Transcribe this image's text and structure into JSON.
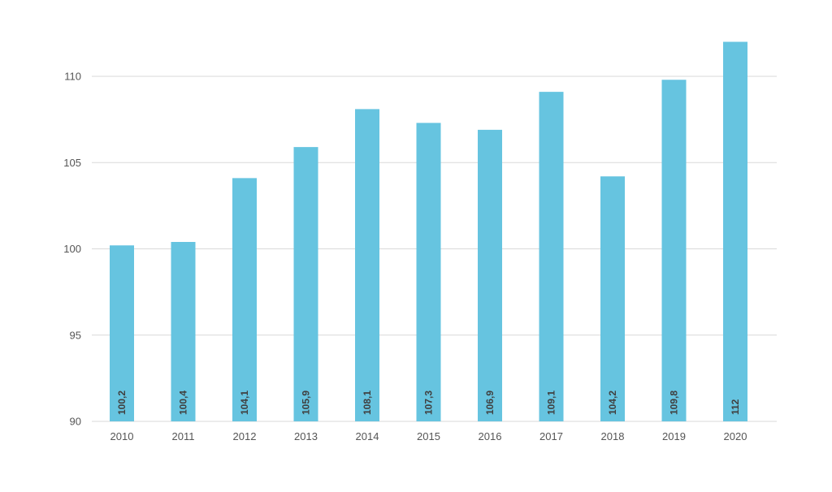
{
  "chart_data": {
    "type": "bar",
    "title": "",
    "xlabel": "",
    "ylabel": "",
    "categories": [
      "2010",
      "2011",
      "2012",
      "2013",
      "2014",
      "2015",
      "2016",
      "2017",
      "2018",
      "2019",
      "2020"
    ],
    "values": [
      100.2,
      100.4,
      104.1,
      105.9,
      108.1,
      107.3,
      106.9,
      109.1,
      104.2,
      109.8,
      112
    ],
    "data_labels": [
      "100,2",
      "100,4",
      "104,1",
      "105,9",
      "108,1",
      "107,3",
      "106,9",
      "109,1",
      "104,2",
      "109,8",
      "112"
    ],
    "ylim": [
      90,
      112
    ],
    "yticks": [
      90,
      95,
      100,
      105,
      110
    ],
    "ytick_labels": [
      "90",
      "95",
      "100",
      "105",
      "110"
    ],
    "grid": true,
    "legend": "none",
    "bar_color": "#66c4e0"
  }
}
